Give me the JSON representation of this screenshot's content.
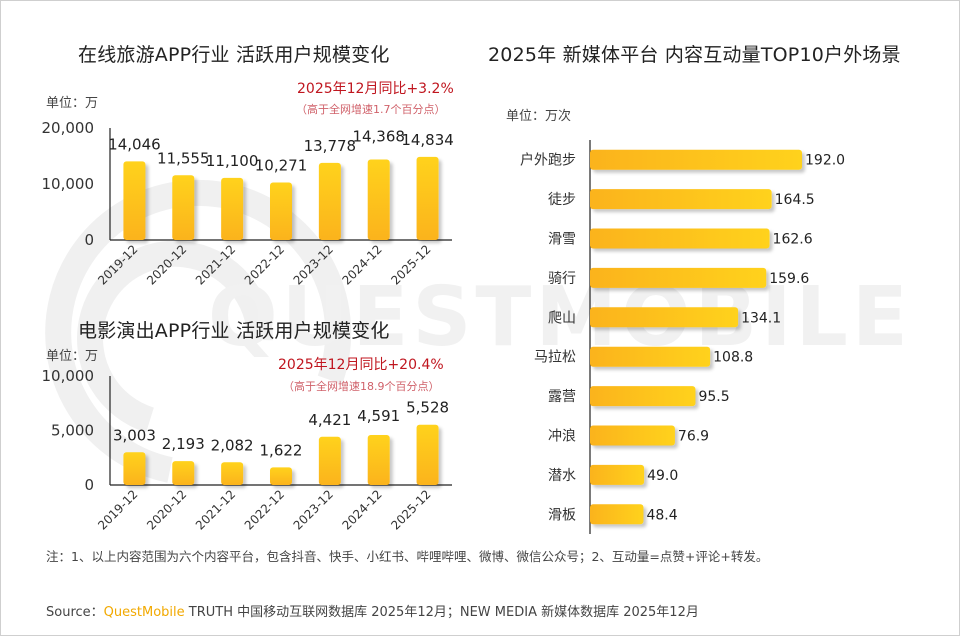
{
  "watermark": "QUESTMOBILE",
  "colors": {
    "bar_light": "#ffd21a",
    "bar_dark": "#fbb31c",
    "highlight_red": "#c0161f",
    "brand": "#f2a900"
  },
  "chart_data": [
    {
      "type": "bar",
      "title": "在线旅游APP行业 活跃用户规模变化",
      "unit_label": "单位：万",
      "yoy_label": "2025年12月同比+3.2%",
      "yoy_note": "（高于全网增速1.7个百分点）",
      "categories": [
        "2019-12",
        "2020-12",
        "2021-12",
        "2022-12",
        "2023-12",
        "2024-12",
        "2025-12"
      ],
      "values": [
        14046,
        11555,
        11100,
        10271,
        13778,
        14368,
        14834
      ],
      "value_labels": [
        "14,046",
        "11,555",
        "11,100",
        "10,271",
        "13,778",
        "14,368",
        "14,834"
      ],
      "ylim": [
        0,
        20000
      ],
      "yticks": [
        0,
        10000,
        20000
      ],
      "ytick_labels": [
        "0",
        "10,000",
        "20,000"
      ],
      "xlabel": "",
      "ylabel": "",
      "grid": false
    },
    {
      "type": "bar",
      "title": "电影演出APP行业 活跃用户规模变化",
      "unit_label": "单位：万",
      "yoy_label": "2025年12月同比+20.4%",
      "yoy_note": "（高于全网增速18.9个百分点）",
      "categories": [
        "2019-12",
        "2020-12",
        "2021-12",
        "2022-12",
        "2023-12",
        "2024-12",
        "2025-12"
      ],
      "values": [
        3003,
        2193,
        2082,
        1622,
        4421,
        4591,
        5528
      ],
      "value_labels": [
        "3,003",
        "2,193",
        "2,082",
        "1,622",
        "4,421",
        "4,591",
        "5,528"
      ],
      "ylim": [
        0,
        10000
      ],
      "yticks": [
        0,
        5000,
        10000
      ],
      "ytick_labels": [
        "0",
        "5,000",
        "10,000"
      ],
      "xlabel": "",
      "ylabel": "",
      "grid": false
    },
    {
      "type": "bar",
      "orientation": "horizontal",
      "title": "2025年 新媒体平台 内容互动量TOP10户外场景",
      "unit_label": "单位：万次",
      "categories": [
        "户外跑步",
        "徒步",
        "滑雪",
        "骑行",
        "爬山",
        "马拉松",
        "露营",
        "冲浪",
        "潜水",
        "滑板"
      ],
      "values": [
        192.0,
        164.5,
        162.6,
        159.6,
        134.1,
        108.8,
        95.5,
        76.9,
        49.0,
        48.4
      ],
      "value_labels": [
        "192.0",
        "164.5",
        "162.6",
        "159.6",
        "134.1",
        "108.8",
        "95.5",
        "76.9",
        "49.0",
        "48.4"
      ],
      "xlim": [
        0,
        200
      ],
      "xlabel": "",
      "ylabel": "",
      "grid": false
    }
  ],
  "footer": {
    "note": "注：1、以上内容范围为六个内容平台，包含抖音、快手、小红书、哔哩哔哩、微博、微信公众号；2、互动量=点赞+评论+转发。",
    "source_prefix": "Source：",
    "source_brand": "QuestMobile",
    "source_rest": " TRUTH 中国移动互联网数据库 2025年12月；NEW MEDIA 新媒体数据库 2025年12月"
  }
}
